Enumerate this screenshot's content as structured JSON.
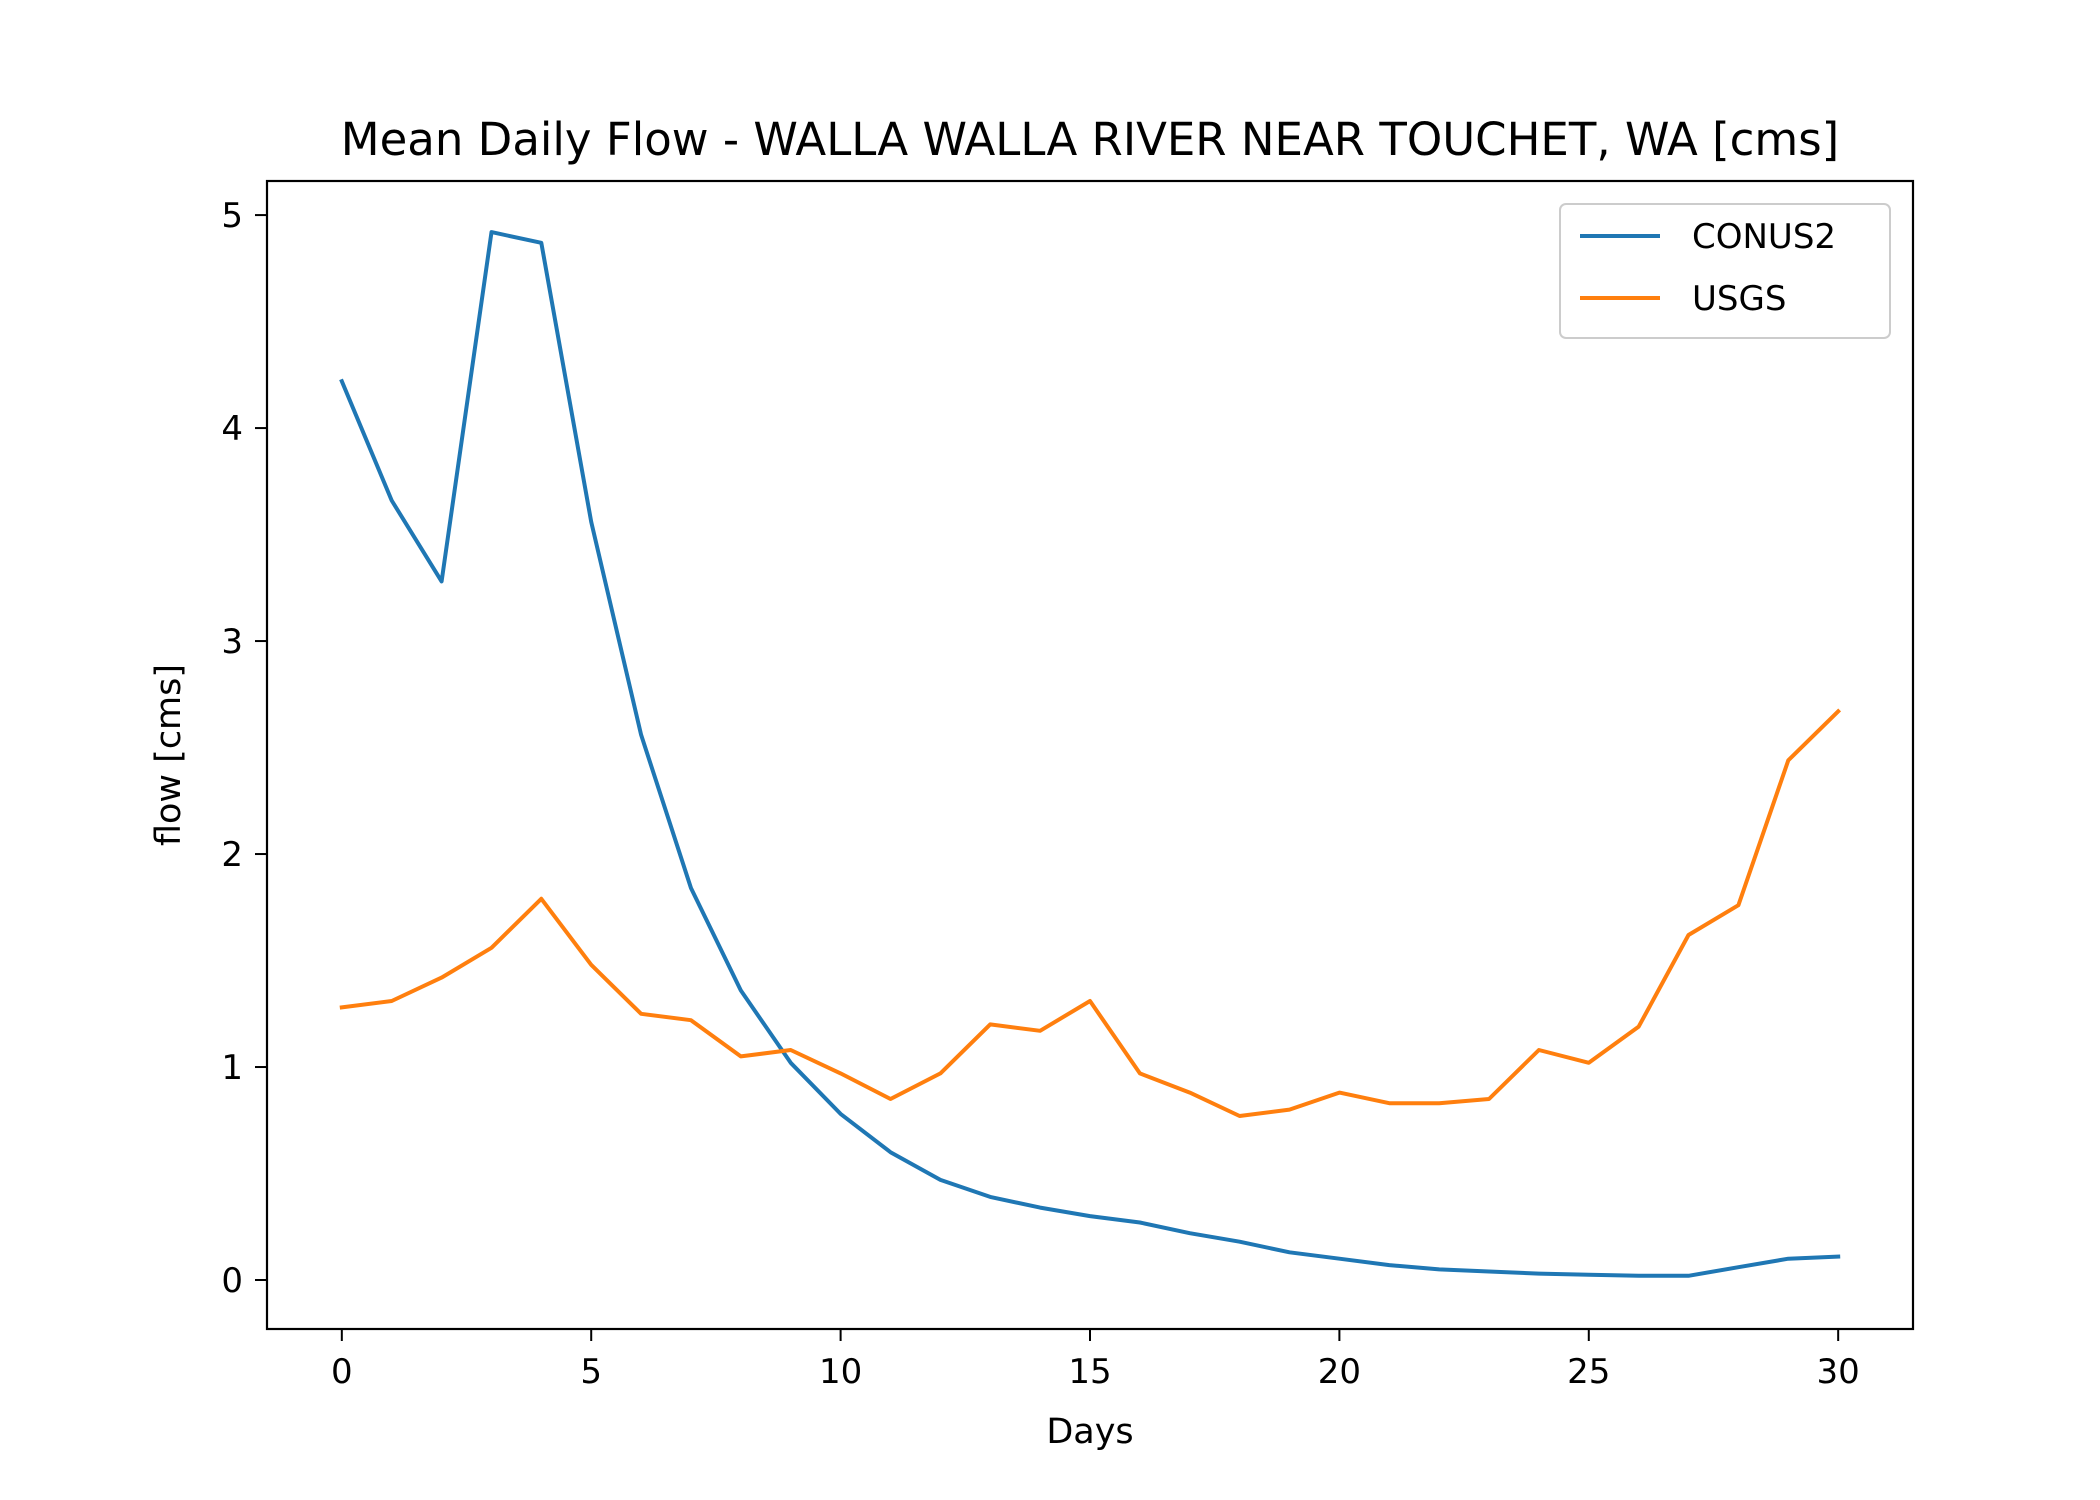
{
  "chart_data": {
    "type": "line",
    "title": "Mean Daily Flow - WALLA WALLA RIVER NEAR TOUCHET, WA [cms]",
    "xlabel": "Days",
    "ylabel": "flow [cms]",
    "xlim": [
      -1.5,
      31.5
    ],
    "ylim": [
      -0.23,
      5.16
    ],
    "xticks": [
      0,
      5,
      10,
      15,
      20,
      25,
      30
    ],
    "yticks": [
      0,
      1,
      2,
      3,
      4,
      5
    ],
    "grid": false,
    "legend_position": "top-right",
    "x": [
      0,
      1,
      2,
      3,
      4,
      5,
      6,
      7,
      8,
      9,
      10,
      11,
      12,
      13,
      14,
      15,
      16,
      17,
      18,
      19,
      20,
      21,
      22,
      23,
      24,
      25,
      26,
      27,
      28,
      29,
      30
    ],
    "series": [
      {
        "name": "CONUS2",
        "color": "#1f77b4",
        "values": [
          4.22,
          3.66,
          3.28,
          4.92,
          4.87,
          3.56,
          2.56,
          1.84,
          1.36,
          1.02,
          0.78,
          0.6,
          0.47,
          0.39,
          0.34,
          0.3,
          0.27,
          0.22,
          0.18,
          0.13,
          0.1,
          0.07,
          0.05,
          0.04,
          0.03,
          0.025,
          0.02,
          0.02,
          0.06,
          0.1,
          0.11
        ]
      },
      {
        "name": "USGS",
        "color": "#ff7f0e",
        "values": [
          1.28,
          1.31,
          1.42,
          1.56,
          1.79,
          1.48,
          1.25,
          1.22,
          1.05,
          1.08,
          0.97,
          0.85,
          0.97,
          1.2,
          1.17,
          1.31,
          0.97,
          0.88,
          0.77,
          0.8,
          0.88,
          0.83,
          0.83,
          0.85,
          1.08,
          1.02,
          1.19,
          1.62,
          1.76,
          2.44,
          2.67
        ]
      }
    ]
  }
}
